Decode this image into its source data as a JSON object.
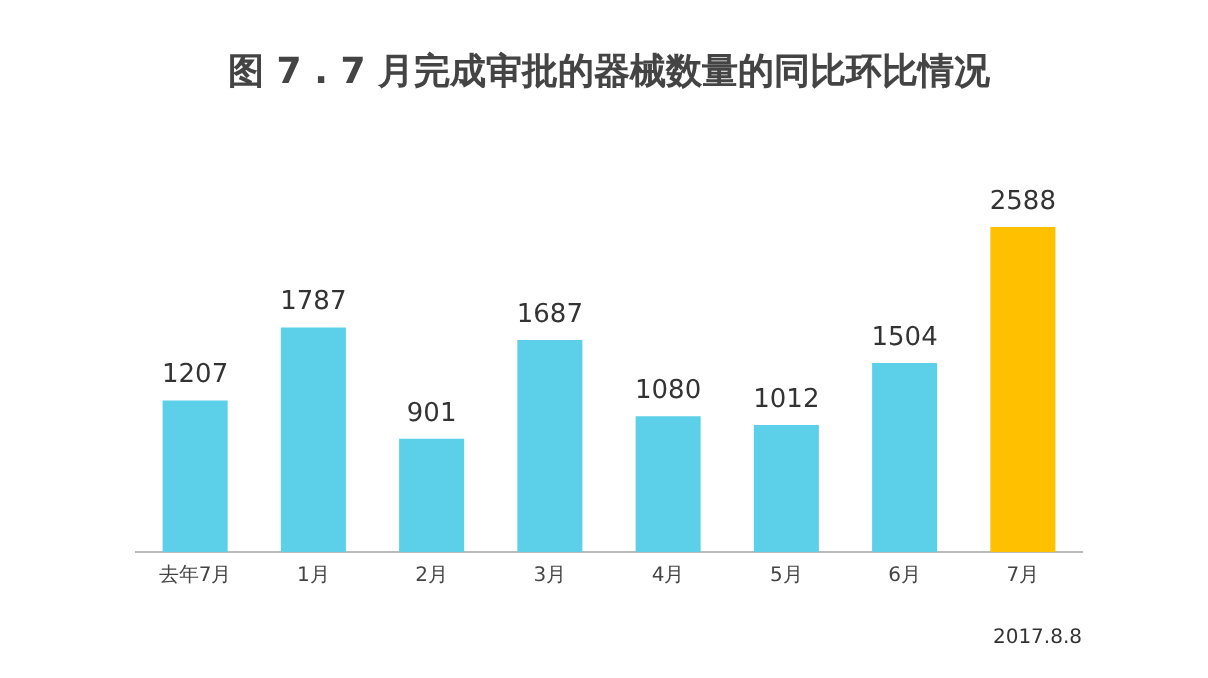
{
  "chart_data": {
    "type": "bar",
    "title": "图 7 . 7 月完成审批的器械数量的同比环比情况",
    "categories": [
      "去年7月",
      "1月",
      "2月",
      "3月",
      "4月",
      "5月",
      "6月",
      "7月"
    ],
    "values": [
      1207,
      1787,
      901,
      1687,
      1080,
      1012,
      1504,
      2588
    ],
    "colors": [
      "#5bd0e8",
      "#5bd0e8",
      "#5bd0e8",
      "#5bd0e8",
      "#5bd0e8",
      "#5bd0e8",
      "#5bd0e8",
      "#ffc000"
    ],
    "data_labels": true,
    "grid": false,
    "legend": false,
    "tick_labels": "x",
    "annotations": [
      "2017.8.8"
    ]
  }
}
